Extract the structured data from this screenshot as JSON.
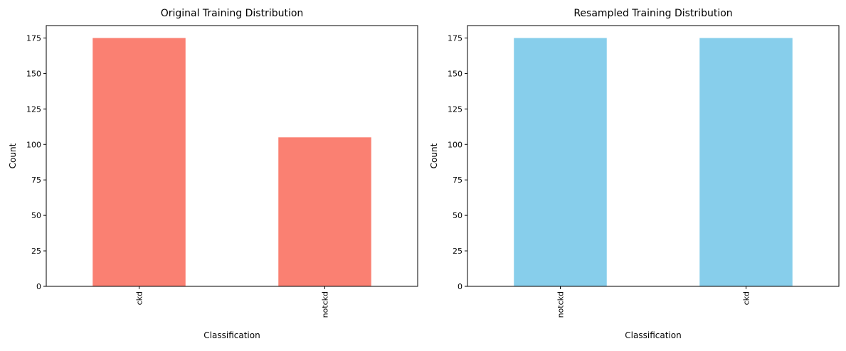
{
  "chart_data": [
    {
      "type": "bar",
      "title": "Original Training Distribution",
      "xlabel": "Classification",
      "ylabel": "Count",
      "categories": [
        "ckd",
        "notckd"
      ],
      "values": [
        175,
        105
      ],
      "ylim": [
        0,
        183.75
      ],
      "yticks": [
        0,
        25,
        50,
        75,
        100,
        125,
        150,
        175
      ],
      "ytick_labels": [
        "0",
        "25",
        "50",
        "75",
        "100",
        "125",
        "150",
        "175"
      ],
      "xtick_rotation": "vertical",
      "grid": false,
      "color": "#fa8072"
    },
    {
      "type": "bar",
      "title": "Resampled Training Distribution",
      "xlabel": "Classification",
      "ylabel": "Count",
      "categories": [
        "notckd",
        "ckd"
      ],
      "values": [
        175,
        175
      ],
      "ylim": [
        0,
        183.75
      ],
      "yticks": [
        0,
        25,
        50,
        75,
        100,
        125,
        150,
        175
      ],
      "ytick_labels": [
        "0",
        "25",
        "50",
        "75",
        "100",
        "125",
        "150",
        "175"
      ],
      "xtick_rotation": "vertical",
      "grid": false,
      "color": "#87ceeb"
    }
  ]
}
